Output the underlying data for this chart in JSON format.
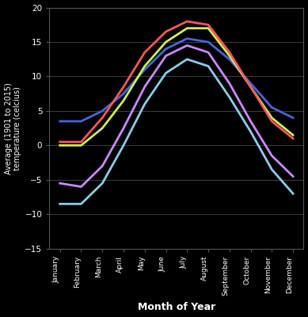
{
  "months": [
    "January",
    "February",
    "March",
    "April",
    "May",
    "June",
    "July",
    "August",
    "September",
    "October",
    "November",
    "December"
  ],
  "countries": {
    "Norway": {
      "color": "#87CEEB",
      "values": [
        -8.5,
        -8.5,
        -5.5,
        0.0,
        6.0,
        10.5,
        12.5,
        11.5,
        7.0,
        2.0,
        -3.5,
        -7.0
      ]
    },
    "Sweden": {
      "color": "#CC88FF",
      "values": [
        -5.5,
        -6.0,
        -3.0,
        2.5,
        8.5,
        13.0,
        14.5,
        13.5,
        9.0,
        3.5,
        -1.5,
        -4.5
      ]
    },
    "Denmark": {
      "color": "#CCEE55",
      "values": [
        0.0,
        0.0,
        2.5,
        6.5,
        11.5,
        15.0,
        17.0,
        17.0,
        13.0,
        8.5,
        4.0,
        1.5
      ]
    },
    "UK": {
      "color": "#4466DD",
      "values": [
        3.5,
        3.5,
        5.0,
        7.5,
        11.0,
        14.0,
        15.5,
        15.0,
        12.5,
        9.0,
        5.5,
        4.0
      ]
    },
    "Germany": {
      "color": "#FF5555",
      "values": [
        0.5,
        0.5,
        4.0,
        8.5,
        13.5,
        16.5,
        18.0,
        17.5,
        13.5,
        8.5,
        3.5,
        1.0
      ]
    }
  },
  "ylim": [
    -15,
    20
  ],
  "yticks": [
    -15,
    -10,
    -5,
    0,
    5,
    10,
    15,
    20
  ],
  "ylabel": "Average (1901 to 2015)\ntemperature (celcius)",
  "xlabel": "Month of Year",
  "background_color": "#000000",
  "text_color": "#ffffff",
  "grid_color": "#555555",
  "linewidth": 2.0
}
